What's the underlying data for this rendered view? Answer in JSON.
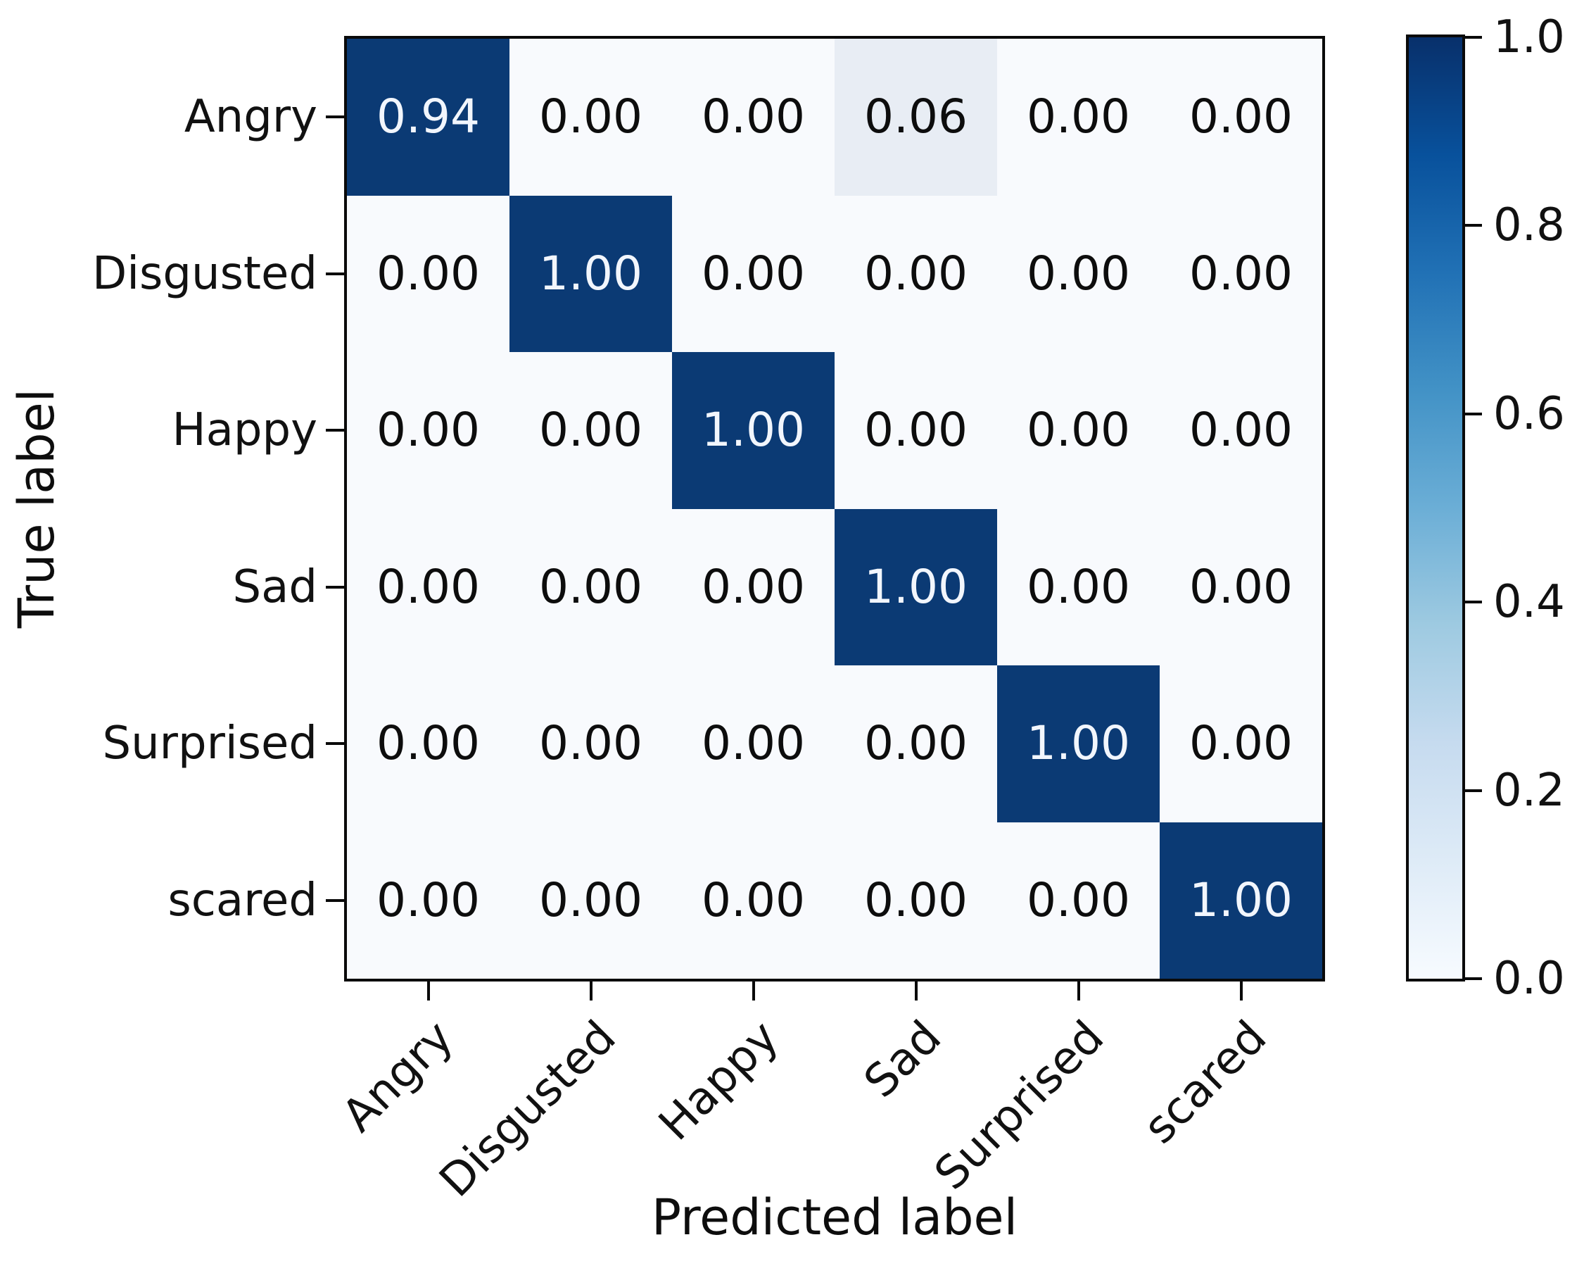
{
  "chart_data": {
    "type": "heatmap",
    "title": "",
    "xlabel": "Predicted label",
    "ylabel": "True label",
    "x_categories": [
      "Angry",
      "Disgusted",
      "Happy",
      "Sad",
      "Surprised",
      "scared"
    ],
    "y_categories": [
      "Angry",
      "Disgusted",
      "Happy",
      "Sad",
      "Surprised",
      "scared"
    ],
    "matrix": [
      [
        0.94,
        0.0,
        0.0,
        0.06,
        0.0,
        0.0
      ],
      [
        0.0,
        1.0,
        0.0,
        0.0,
        0.0,
        0.0
      ],
      [
        0.0,
        0.0,
        1.0,
        0.0,
        0.0,
        0.0
      ],
      [
        0.0,
        0.0,
        0.0,
        1.0,
        0.0,
        0.0
      ],
      [
        0.0,
        0.0,
        0.0,
        0.0,
        1.0,
        0.0
      ],
      [
        0.0,
        0.0,
        0.0,
        0.0,
        0.0,
        1.0
      ]
    ],
    "cell_labels": [
      [
        "0.94",
        "0.00",
        "0.00",
        "0.06",
        "0.00",
        "0.00"
      ],
      [
        "0.00",
        "1.00",
        "0.00",
        "0.00",
        "0.00",
        "0.00"
      ],
      [
        "0.00",
        "0.00",
        "1.00",
        "0.00",
        "0.00",
        "0.00"
      ],
      [
        "0.00",
        "0.00",
        "0.00",
        "1.00",
        "0.00",
        "0.00"
      ],
      [
        "0.00",
        "0.00",
        "0.00",
        "0.00",
        "1.00",
        "0.00"
      ],
      [
        "0.00",
        "0.00",
        "0.00",
        "0.00",
        "0.00",
        "1.00"
      ]
    ],
    "value_range": [
      0.0,
      1.0
    ],
    "grid": false,
    "legend_position": "right-colorbar",
    "colorbar_ticks": [
      "1.0",
      "0.8",
      "0.6",
      "0.4",
      "0.2",
      "0.0"
    ],
    "colorbar_tick_values": [
      1.0,
      0.8,
      0.6,
      0.4,
      0.2,
      0.0
    ],
    "colormap_name": "Blues",
    "colormap_stops": [
      "#f7fbff",
      "#deebf7",
      "#c6dbef",
      "#9ecae1",
      "#6baed6",
      "#4292c6",
      "#2171b5",
      "#08519c",
      "#08306b"
    ],
    "colors": {
      "diagonal_cell": "#0b3a74",
      "zero_cell": "#f8fafd",
      "low_cell": "#e8edf4",
      "diagonal_text": "#f2f6fd",
      "cell_text": "#0d0d0d",
      "spine": "#0a0a0a",
      "tick_text": "#111111",
      "background": "#ffffff"
    }
  }
}
